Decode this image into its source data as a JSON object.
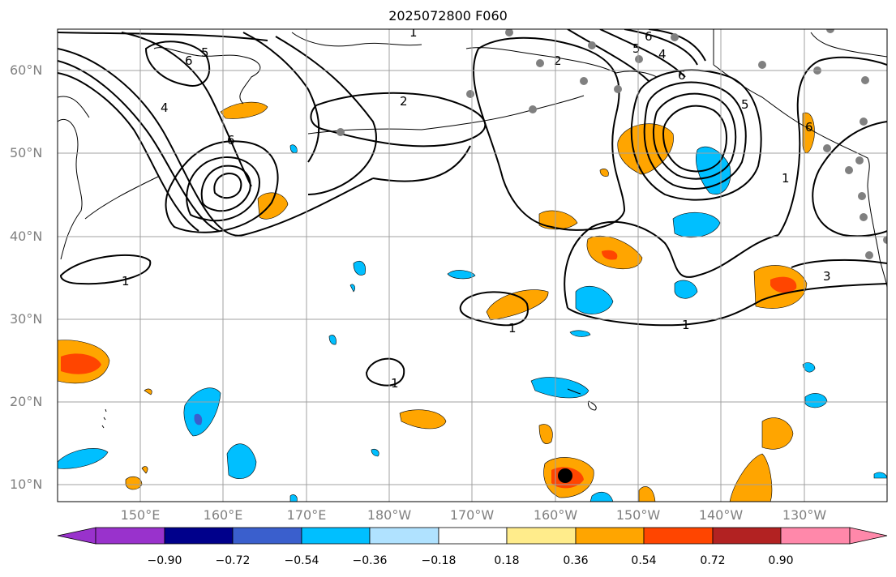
{
  "title": "2025072800 F060",
  "lat_labels": [
    "60°N",
    "50°N",
    "40°N",
    "30°N",
    "20°N",
    "10°N"
  ],
  "lon_labels": [
    "150°E",
    "160°E",
    "170°E",
    "180°W",
    "170°W",
    "160°W",
    "150°W",
    "140°W",
    "130°W"
  ],
  "contour_labels": [
    "1",
    "6",
    "5",
    "4",
    "6",
    "2",
    "6",
    "2",
    "5",
    "4",
    "6",
    "5",
    "6",
    "1",
    "3",
    "1",
    "1",
    "1",
    "1"
  ],
  "colorbar": {
    "tick_labels": [
      "−0.90",
      "−0.72",
      "−0.54",
      "−0.36",
      "−0.18",
      "0.18",
      "0.36",
      "0.54",
      "0.72",
      "0.90"
    ],
    "colors": [
      "#9932cc",
      "#00008b",
      "#3a5fcd",
      "#00bfff",
      "#b0e2ff",
      "#ffffff",
      "#ffec8b",
      "#ffa500",
      "#ff4500",
      "#b22222",
      "#ff88aa"
    ]
  },
  "colors": {
    "positive_weak": "#ffa500",
    "positive_mid": "#ff4500",
    "negative_weak": "#00bfff",
    "negative_mid": "#3a5fcd",
    "station_dot": "#808080",
    "gridline": "#a0a0a0"
  }
}
